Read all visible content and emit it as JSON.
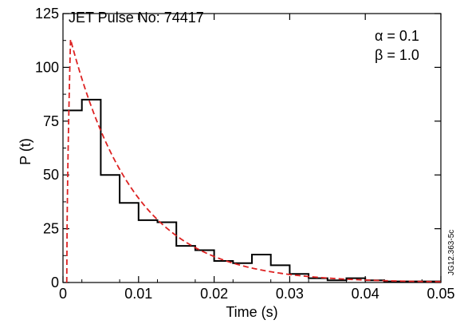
{
  "chart_data": {
    "type": "step",
    "title": "JET Pulse No: 74417",
    "xlabel": "Time (s)",
    "ylabel": "P (t)",
    "xlim": [
      0,
      0.05
    ],
    "ylim": [
      0,
      125
    ],
    "xticks": [
      "0",
      "0.01",
      "0.02",
      "0.03",
      "0.04",
      "0.05"
    ],
    "yticks": [
      "0",
      "25",
      "50",
      "75",
      "100",
      "125"
    ],
    "annotations": [
      "α = 0.1",
      "β = 1.0"
    ],
    "figure_code": "JG12.363-5c",
    "grid": false,
    "series": [
      {
        "kind": "histogram",
        "color": "#000000",
        "bin_width": 0.0025,
        "bin_start": 0,
        "values": [
          80,
          85,
          50,
          37,
          29,
          28,
          17,
          15,
          10,
          9,
          13,
          8,
          4,
          2,
          1,
          2,
          1,
          0.5,
          0.5,
          0.5
        ]
      },
      {
        "kind": "fit",
        "color": "#dd2222",
        "dashed": true,
        "onset": 0.0005,
        "peak_x": 0.001,
        "peak_y": 113,
        "decay_tau": 0.0085
      }
    ]
  }
}
